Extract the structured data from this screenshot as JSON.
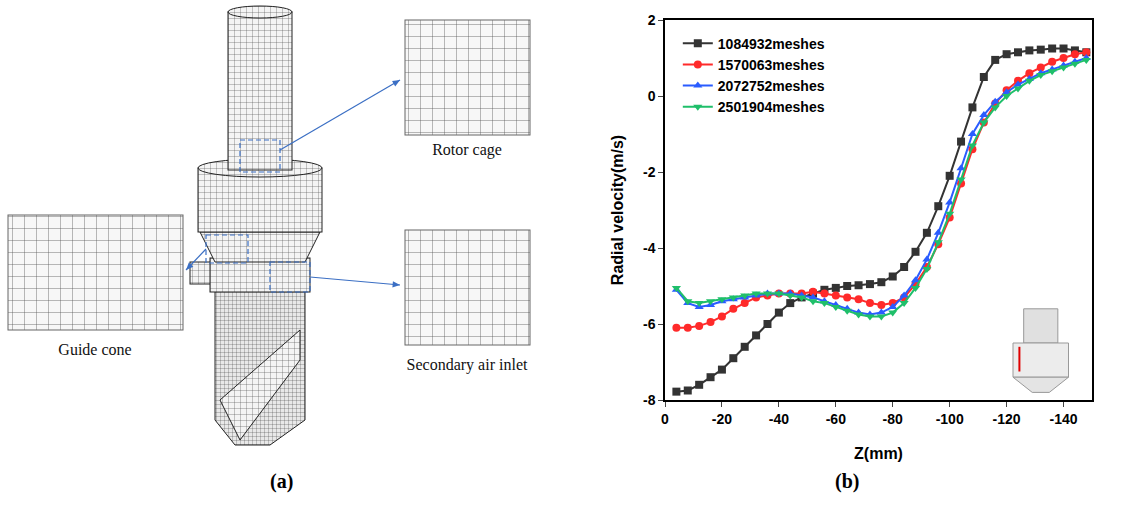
{
  "diagram": {
    "label": "(a)",
    "callouts": [
      "Rotor cage",
      "Guide cone",
      "Secondary air inlet"
    ]
  },
  "chart_data": {
    "type": "line",
    "label": "(b)",
    "x_label": "Z(mm)",
    "y_label": "Radial velocity(m/s)",
    "x": [
      -4,
      -8,
      -12,
      -16,
      -20,
      -24,
      -28,
      -32,
      -36,
      -40,
      -44,
      -48,
      -52,
      -56,
      -60,
      -64,
      -68,
      -72,
      -76,
      -80,
      -84,
      -88,
      -92,
      -96,
      -100,
      -104,
      -108,
      -112,
      -116,
      -120,
      -124,
      -128,
      -132,
      -136,
      -140,
      -144,
      -148
    ],
    "xlim": [
      0,
      -150
    ],
    "xticks": [
      0,
      -20,
      -40,
      -60,
      -80,
      -100,
      -120,
      -140
    ],
    "ylim": [
      -8,
      2
    ],
    "yticks": [
      -8,
      -6,
      -4,
      -2,
      0,
      2
    ],
    "grid": false,
    "legend": "top-left",
    "series": [
      {
        "name": "1084932meshes",
        "color": "#333333",
        "marker": "square",
        "line_style": "solid",
        "values": [
          -7.78,
          -7.75,
          -7.6,
          -7.4,
          -7.2,
          -6.9,
          -6.6,
          -6.3,
          -6.0,
          -5.7,
          -5.45,
          -5.3,
          -5.2,
          -5.1,
          -5.05,
          -5.0,
          -4.98,
          -4.95,
          -4.9,
          -4.75,
          -4.5,
          -4.1,
          -3.6,
          -2.9,
          -2.1,
          -1.2,
          -0.3,
          0.5,
          0.95,
          1.1,
          1.15,
          1.2,
          1.22,
          1.25,
          1.25,
          1.2,
          1.15
        ]
      },
      {
        "name": "1570063meshes",
        "color": "#ff2a2a",
        "marker": "circle",
        "line_style": "solid",
        "values": [
          -6.1,
          -6.1,
          -6.05,
          -5.95,
          -5.8,
          -5.6,
          -5.45,
          -5.3,
          -5.25,
          -5.2,
          -5.2,
          -5.2,
          -5.15,
          -5.2,
          -5.25,
          -5.3,
          -5.35,
          -5.45,
          -5.5,
          -5.45,
          -5.3,
          -4.95,
          -4.5,
          -3.9,
          -3.2,
          -2.3,
          -1.4,
          -0.7,
          -0.2,
          0.15,
          0.4,
          0.6,
          0.75,
          0.9,
          1.0,
          1.1,
          1.15
        ]
      },
      {
        "name": "2072752meshes",
        "color": "#2a5cff",
        "marker": "triangle-up",
        "line_style": "solid",
        "values": [
          -5.1,
          -5.45,
          -5.55,
          -5.5,
          -5.4,
          -5.35,
          -5.3,
          -5.25,
          -5.2,
          -5.2,
          -5.2,
          -5.25,
          -5.3,
          -5.4,
          -5.5,
          -5.6,
          -5.7,
          -5.75,
          -5.7,
          -5.55,
          -5.25,
          -4.85,
          -4.3,
          -3.6,
          -2.8,
          -1.9,
          -1.0,
          -0.5,
          -0.15,
          0.1,
          0.3,
          0.45,
          0.6,
          0.7,
          0.8,
          0.9,
          1.0
        ]
      },
      {
        "name": "2501904meshes",
        "color": "#1fbf6a",
        "marker": "triangle-down",
        "line_style": "solid",
        "values": [
          -5.05,
          -5.4,
          -5.45,
          -5.4,
          -5.35,
          -5.3,
          -5.25,
          -5.2,
          -5.2,
          -5.2,
          -5.25,
          -5.3,
          -5.4,
          -5.45,
          -5.55,
          -5.65,
          -5.75,
          -5.8,
          -5.8,
          -5.7,
          -5.45,
          -5.05,
          -4.55,
          -3.85,
          -3.1,
          -2.2,
          -1.3,
          -0.7,
          -0.3,
          0.0,
          0.2,
          0.4,
          0.55,
          0.65,
          0.75,
          0.85,
          0.95
        ]
      }
    ]
  }
}
